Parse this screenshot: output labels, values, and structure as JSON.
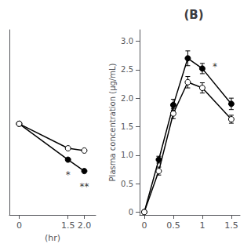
{
  "chart_data": [
    {
      "type": "line",
      "xlabel": "(hr)",
      "x": [
        0,
        1.5,
        2.0
      ],
      "xlim": [
        -0.3,
        2.35
      ],
      "xticks": [
        0,
        1.5,
        {
          "value": 2.0,
          "label": "2.0"
        }
      ],
      "ylim": [
        -0.05,
        3.2
      ],
      "tick_labels": "x",
      "grid": false,
      "series": [
        {
          "values": [
            1.55,
            0.92,
            0.72
          ],
          "color": "#000000",
          "marker": "filled"
        },
        {
          "values": [
            1.55,
            1.12,
            1.08
          ],
          "color": "#000000",
          "marker": "open"
        }
      ],
      "annotations": [
        {
          "text": "*",
          "x": 1.5,
          "y": 0.76
        },
        {
          "text": "**",
          "x": 2.0,
          "y": 0.56
        }
      ]
    },
    {
      "type": "line",
      "title": "(B)",
      "ylabel": "Plasma concentration (μg/mL)",
      "x": [
        0,
        0.25,
        0.5,
        0.75,
        1.0,
        1.5
      ],
      "xlim": [
        -0.08,
        1.65
      ],
      "xticks": [
        0,
        0.5,
        1,
        1.5
      ],
      "ylim": [
        -0.05,
        3.2
      ],
      "yticks": [
        0,
        0.5,
        {
          "value": 1.0,
          "label": "1.0"
        },
        1.5,
        {
          "value": 2.0,
          "label": "2.0"
        },
        2.5,
        {
          "value": 3.0,
          "label": "3.0"
        }
      ],
      "grid": false,
      "series": [
        {
          "values": [
            0,
            0.92,
            1.88,
            2.7,
            2.52,
            1.9
          ],
          "errors": [
            0.0,
            0.06,
            0.1,
            0.13,
            0.09,
            0.1
          ],
          "color": "#000000",
          "marker": "filled"
        },
        {
          "values": [
            0,
            0.72,
            1.73,
            2.28,
            2.18,
            1.63
          ],
          "errors": [
            0.0,
            0.07,
            0.09,
            0.1,
            0.09,
            0.07
          ],
          "color": "#000000",
          "marker": "open"
        }
      ],
      "annotations": [
        {
          "text": "*",
          "x": 1.15,
          "y": 2.55
        }
      ]
    }
  ]
}
